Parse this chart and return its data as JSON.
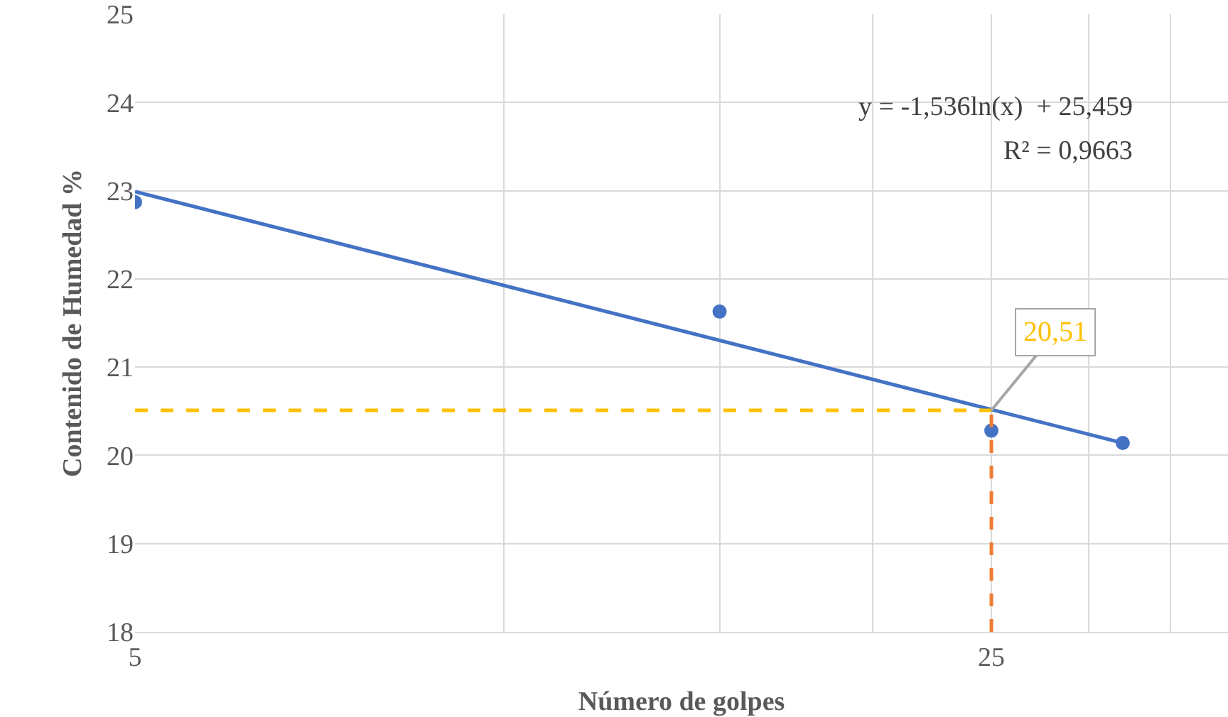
{
  "chart_data": {
    "type": "scatter",
    "xlabel": "Número de golpes",
    "ylabel": "Contenido de Humedad %",
    "log": "x",
    "grid": true,
    "xlim": [
      5,
      39
    ],
    "xticks": [
      5,
      {
        "value": 10,
        "label": null
      },
      {
        "value": 15,
        "label": null
      },
      {
        "value": 20,
        "label": null
      },
      25,
      {
        "value": 30,
        "label": null
      },
      {
        "value": 35,
        "label": null
      }
    ],
    "ylim": [
      18,
      25
    ],
    "yticks": [
      18,
      19,
      20,
      21,
      22,
      23,
      24,
      25
    ],
    "series": [
      {
        "marker": "circle",
        "color": "#4472c4",
        "x": [
          5,
          15,
          25,
          32
        ],
        "values": [
          22.87,
          21.63,
          20.28,
          20.14
        ]
      },
      {
        "type": "line",
        "marker": "none",
        "line_style": "solid",
        "color": "#4472c4",
        "x": [
          5,
          32
        ],
        "values": [
          22.99,
          20.14
        ]
      },
      {
        "type": "line",
        "marker": "none",
        "line_style": "dashed",
        "color": "#ffc000",
        "x": [
          5,
          25
        ],
        "values": [
          20.51,
          20.51
        ]
      },
      {
        "type": "line",
        "marker": "none",
        "line_style": "dashed",
        "color": "#ed7d31",
        "x": [
          25,
          25
        ],
        "values": [
          18,
          20.51
        ]
      }
    ],
    "annotations": [
      "y = -1,536ln(x)  + 25,459",
      "R² = 0,9663",
      {
        "text": "20,51",
        "x": 25,
        "y": 20.51
      }
    ]
  }
}
